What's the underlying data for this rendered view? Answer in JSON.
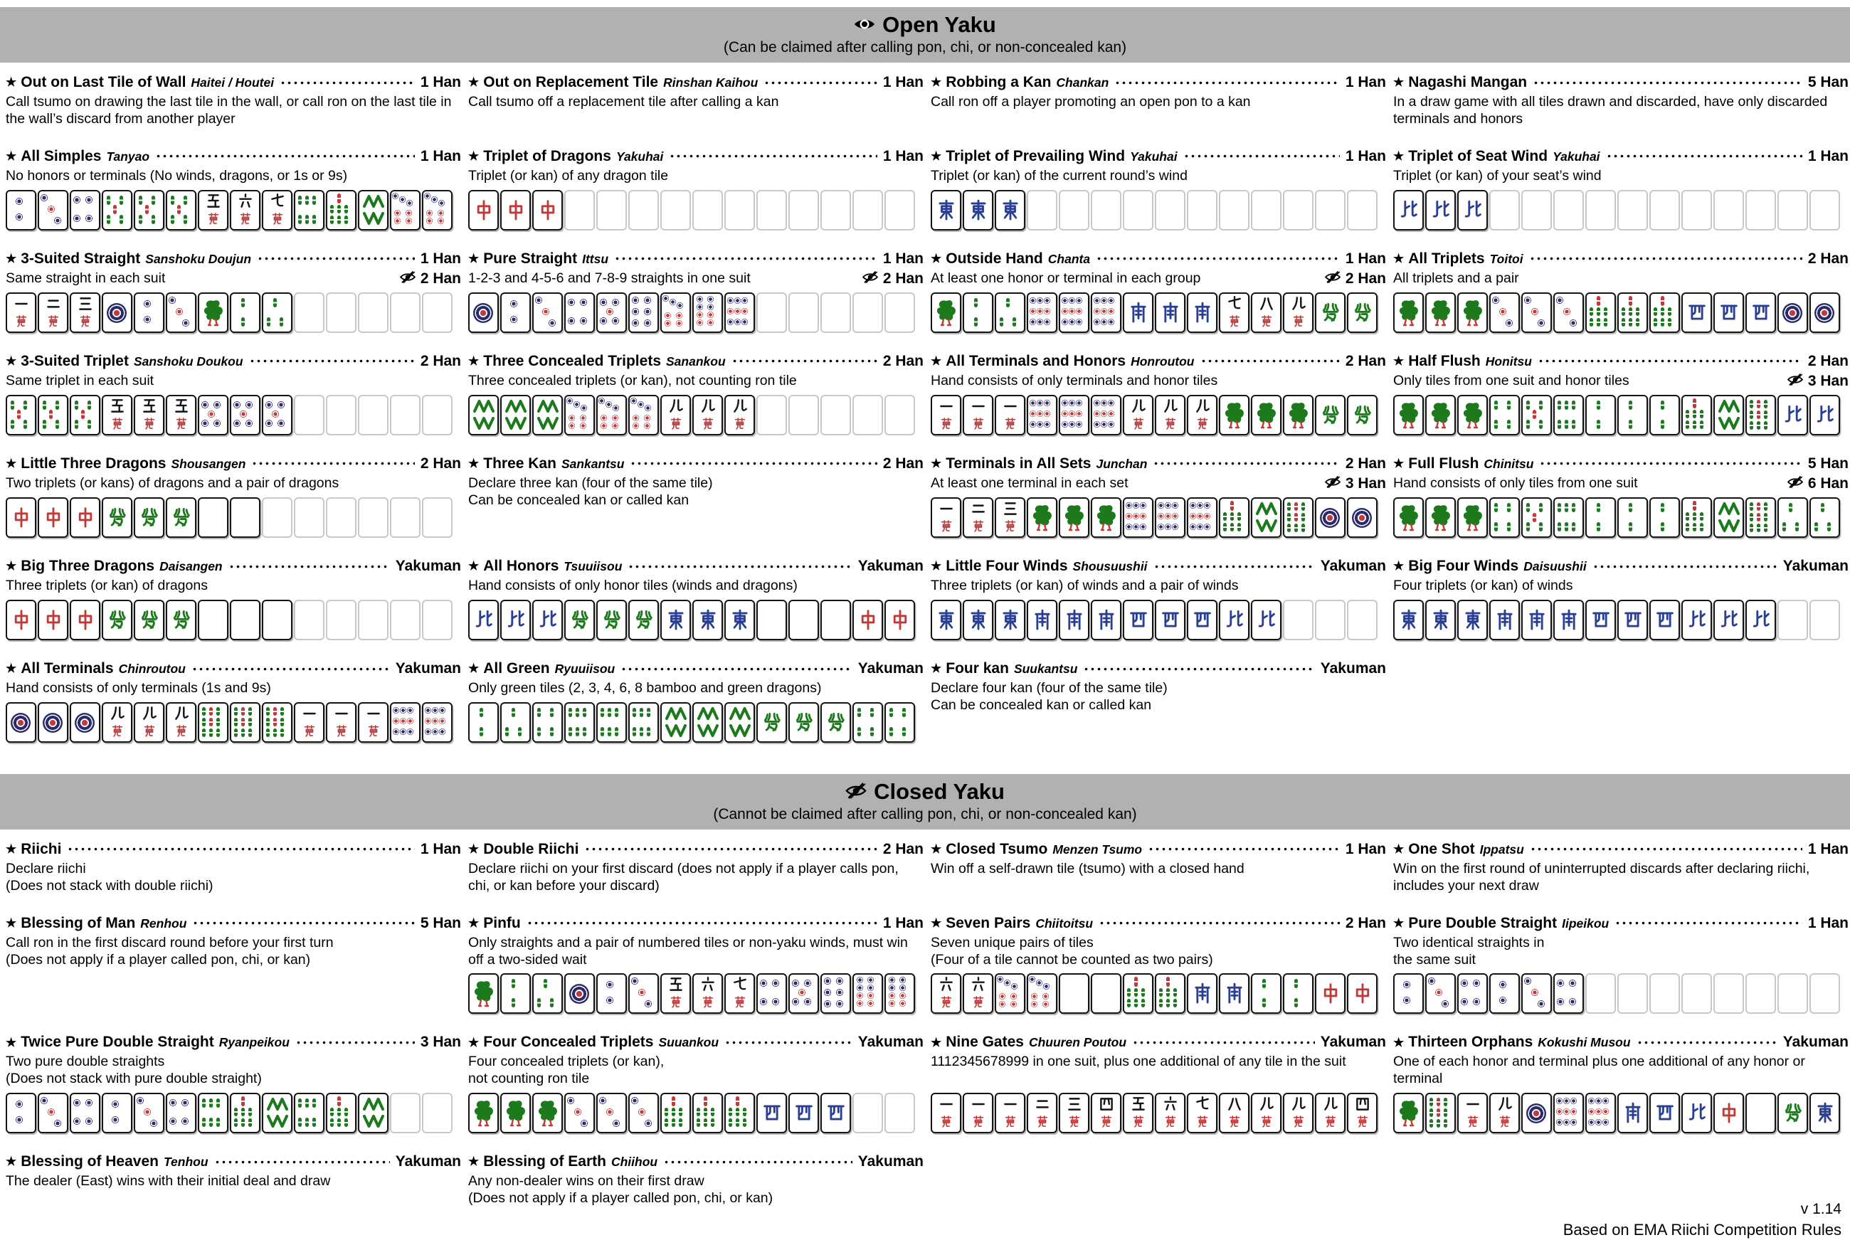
{
  "colors": {
    "header_bg": "#b1b1b1",
    "tile_border": "#151515",
    "empty_border": "#c8c8c8",
    "pin_navy": "#2b2b6b",
    "accent_red": "#c03a3a",
    "bamboo_green": "#1c7a1c",
    "wind_blue": "#2a3f92"
  },
  "footer": {
    "version": "v 1.14",
    "credit": "Based on EMA Riichi Competition Rules"
  },
  "sections": [
    {
      "title": "Open Yaku",
      "icon": "eye-open",
      "subtitle": "(Can be claimed after calling pon, chi, or non-concealed kan)",
      "rows": [
        [
          {
            "name": "Out on Last Tile of Wall",
            "romaji": "Haitei / Houtei",
            "han": "1 Han",
            "desc": [
              "Call tsumo on drawing the last tile in the wall, or call ron on the last tile in the wall’s discard from another player"
            ]
          },
          {
            "name": "Out on Replacement Tile",
            "romaji": "Rinshan Kaihou",
            "han": "1 Han",
            "desc": [
              "Call tsumo off a replacement tile after calling a kan"
            ]
          },
          {
            "name": "Robbing a Kan",
            "romaji": "Chankan",
            "han": "1 Han",
            "desc": [
              "Call ron off a player promoting an open pon to a kan"
            ]
          },
          {
            "name": "Nagashi Mangan",
            "romaji": "",
            "han": "5 Han",
            "desc": [
              "In a draw game with all tiles drawn and discarded, have only discarded terminals and honors"
            ]
          }
        ],
        [
          {
            "name": "All Simples",
            "romaji": "Tanyao",
            "han": "1 Han",
            "desc": [
              "No honors or terminals (No winds, dragons, or 1s or 9s)"
            ],
            "tiles": [
              "2p",
              "3p",
              "4p",
              "5s",
              "5s",
              "5s",
              "5m",
              "6m",
              "7m",
              "6s",
              "7s",
              "8s",
              "7p",
              "7p"
            ]
          },
          {
            "name": "Triplet of Dragons",
            "romaji": "Yakuhai",
            "han": "1 Han",
            "desc": [
              "Triplet (or kan) of any dragon tile"
            ],
            "tiles": [
              "C",
              "C",
              "C",
              "",
              "",
              "",
              "",
              "",
              "",
              "",
              "",
              "",
              "",
              ""
            ]
          },
          {
            "name": "Triplet of Prevailing Wind",
            "romaji": "Yakuhai",
            "han": "1 Han",
            "desc": [
              "Triplet (or kan) of the current round’s wind"
            ],
            "tiles": [
              "E",
              "E",
              "E",
              "",
              "",
              "",
              "",
              "",
              "",
              "",
              "",
              "",
              "",
              ""
            ]
          },
          {
            "name": "Triplet of Seat Wind",
            "romaji": "Yakuhai",
            "han": "1 Han",
            "desc": [
              "Triplet (or kan) of your seat’s wind"
            ],
            "tiles": [
              "N",
              "N",
              "N",
              "",
              "",
              "",
              "",
              "",
              "",
              "",
              "",
              "",
              "",
              ""
            ]
          }
        ],
        [
          {
            "name": "3-Suited Straight",
            "romaji": "Sanshoku Doujun",
            "han": "1 Han",
            "han2": "2 Han",
            "desc": [
              "Same straight in each suit"
            ],
            "tiles": [
              "1m",
              "2m",
              "3m",
              "1p",
              "2p",
              "3p",
              "1s",
              "2s",
              "3s",
              "",
              "",
              "",
              "",
              ""
            ]
          },
          {
            "name": "Pure Straight",
            "romaji": "Ittsu",
            "han": "1 Han",
            "han2": "2 Han",
            "desc": [
              "1-2-3 and 4-5-6 and 7-8-9 straights in one suit"
            ],
            "tiles": [
              "1p",
              "2p",
              "3p",
              "4p",
              "5p",
              "6p",
              "7p",
              "8p",
              "9p",
              "",
              "",
              "",
              "",
              ""
            ]
          },
          {
            "name": "Outside Hand",
            "romaji": "Chanta",
            "han": "1 Han",
            "han2": "2 Han",
            "desc": [
              "At least one honor or terminal in each group"
            ],
            "tiles": [
              "1s",
              "2s",
              "3s",
              "9p",
              "9p",
              "9p",
              "S",
              "S",
              "S",
              "7m",
              "8m",
              "9m",
              "F",
              "F"
            ]
          },
          {
            "name": "All Triplets",
            "romaji": "Toitoi",
            "han": "2 Han",
            "desc": [
              "All triplets and a pair"
            ],
            "tiles": [
              "1s",
              "1s",
              "1s",
              "3p",
              "3p",
              "3p",
              "7s",
              "7s",
              "7s",
              "W",
              "W",
              "W",
              "1p",
              "1p"
            ]
          }
        ],
        [
          {
            "name": "3-Suited Triplet",
            "romaji": "Sanshoku Doukou",
            "han": "2 Han",
            "desc": [
              "Same triplet in each suit"
            ],
            "tiles": [
              "5s",
              "5s",
              "5s",
              "5m",
              "5m",
              "5m",
              "5p",
              "5p",
              "5p",
              "",
              "",
              "",
              "",
              ""
            ]
          },
          {
            "name": "Three Concealed Triplets",
            "romaji": "Sanankou",
            "han": "2 Han",
            "desc": [
              "Three concealed triplets (or kan), not counting ron tile"
            ],
            "tiles": [
              "8s",
              "8s",
              "8s",
              "7p",
              "7p",
              "7p",
              "9m",
              "9m",
              "9m",
              "",
              "",
              "",
              "",
              ""
            ]
          },
          {
            "name": "All Terminals and Honors",
            "romaji": "Honroutou",
            "han": "2 Han",
            "desc": [
              "Hand consists of only terminals and honor tiles"
            ],
            "tiles": [
              "1m",
              "1m",
              "1m",
              "9p",
              "9p",
              "9p",
              "9m",
              "9m",
              "9m",
              "1s",
              "1s",
              "1s",
              "F",
              "F"
            ]
          },
          {
            "name": "Half Flush",
            "romaji": "Honitsu",
            "han": "2 Han",
            "han2": "3 Han",
            "desc": [
              "Only tiles from one suit and honor tiles"
            ],
            "tiles": [
              "1s",
              "1s",
              "1s",
              "4s",
              "5s",
              "6s",
              "2s",
              "2s",
              "2s",
              "7s",
              "8s",
              "9s",
              "N",
              "N"
            ]
          }
        ],
        [
          {
            "name": "Little Three Dragons",
            "romaji": "Shousangen",
            "han": "2 Han",
            "desc": [
              "Two triplets (or kans) of dragons and a pair of dragons"
            ],
            "tiles": [
              "C",
              "C",
              "C",
              "F",
              "F",
              "F",
              "H",
              "H",
              "",
              "",
              "",
              "",
              "",
              ""
            ]
          },
          {
            "name": "Three Kan",
            "romaji": "Sankantsu",
            "han": "2 Han",
            "desc": [
              "Declare three kan (four of the same tile)",
              "Can be concealed kan or called kan"
            ]
          },
          {
            "name": "Terminals in All Sets",
            "romaji": "Junchan",
            "han": "2 Han",
            "han2": "3 Han",
            "desc": [
              "At least one terminal in each set"
            ],
            "tiles": [
              "1m",
              "2m",
              "3m",
              "1s",
              "1s",
              "1s",
              "9p",
              "9p",
              "9p",
              "7s",
              "8s",
              "9s",
              "1p",
              "1p"
            ]
          },
          {
            "name": "Full Flush",
            "romaji": "Chinitsu",
            "han": "5 Han",
            "han2": "6 Han",
            "desc": [
              "Hand consists of only tiles from one suit"
            ],
            "tiles": [
              "1s",
              "1s",
              "1s",
              "4s",
              "5s",
              "6s",
              "2s",
              "2s",
              "2s",
              "7s",
              "8s",
              "9s",
              "3s",
              "3s"
            ]
          }
        ],
        [
          {
            "name": "Big Three Dragons",
            "romaji": "Daisangen",
            "han": "Yakuman",
            "desc": [
              "Three triplets (or kan) of dragons"
            ],
            "tiles": [
              "C",
              "C",
              "C",
              "F",
              "F",
              "F",
              "H",
              "H",
              "H",
              "",
              "",
              "",
              "",
              ""
            ]
          },
          {
            "name": "All Honors",
            "romaji": "Tsuuiisou",
            "han": "Yakuman",
            "desc": [
              "Hand consists of only honor tiles (winds and dragons)"
            ],
            "tiles": [
              "N",
              "N",
              "N",
              "F",
              "F",
              "F",
              "E",
              "E",
              "E",
              "H",
              "H",
              "H",
              "C",
              "C"
            ]
          },
          {
            "name": "Little Four Winds",
            "romaji": "Shousuushii",
            "han": "Yakuman",
            "desc": [
              "Three triplets (or kan) of winds and a pair of winds"
            ],
            "tiles": [
              "E",
              "E",
              "E",
              "S",
              "S",
              "S",
              "W",
              "W",
              "W",
              "N",
              "N",
              "",
              "",
              ""
            ]
          },
          {
            "name": "Big Four Winds",
            "romaji": "Daisuushii",
            "han": "Yakuman",
            "desc": [
              "Four triplets (or kan) of winds"
            ],
            "tiles": [
              "E",
              "E",
              "E",
              "S",
              "S",
              "S",
              "W",
              "W",
              "W",
              "N",
              "N",
              "N",
              "",
              ""
            ]
          }
        ],
        [
          {
            "name": "All Terminals",
            "romaji": "Chinroutou",
            "han": "Yakuman",
            "desc": [
              "Hand consists of only terminals (1s and 9s)"
            ],
            "tiles": [
              "1p",
              "1p",
              "1p",
              "9m",
              "9m",
              "9m",
              "9s",
              "9s",
              "9s",
              "1m",
              "1m",
              "1m",
              "9p",
              "9p"
            ]
          },
          {
            "name": "All Green",
            "romaji": "Ryuuiisou",
            "han": "Yakuman",
            "desc": [
              "Only green tiles (2, 3, 4, 6, 8 bamboo and green dragons)"
            ],
            "tiles": [
              "2s",
              "3s",
              "4s",
              "6s",
              "6s",
              "6s",
              "8s",
              "8s",
              "8s",
              "F",
              "F",
              "F",
              "4s",
              "4s"
            ]
          },
          {
            "name": "Four kan",
            "romaji": "Suukantsu",
            "han": "Yakuman",
            "desc": [
              "Declare four kan (four of the same tile)",
              "Can be concealed kan or called kan"
            ]
          },
          null
        ]
      ]
    },
    {
      "title": "Closed Yaku",
      "icon": "eye-slash",
      "subtitle": "(Cannot be claimed after calling pon, chi, or non-concealed kan)",
      "rows": [
        [
          {
            "name": "Riichi",
            "romaji": "",
            "han": "1 Han",
            "desc": [
              "Declare riichi",
              "(Does not stack with double riichi)"
            ]
          },
          {
            "name": "Double Riichi",
            "romaji": "",
            "han": "2 Han",
            "desc": [
              "Declare riichi on your first discard (does not apply if a player calls pon, chi, or kan before your discard)"
            ]
          },
          {
            "name": "Closed Tsumo",
            "romaji": "Menzen Tsumo",
            "han": "1 Han",
            "desc": [
              "Win off a self-drawn tile (tsumo) with a closed hand"
            ]
          },
          {
            "name": "One Shot",
            "romaji": "Ippatsu",
            "han": "1 Han",
            "desc": [
              "Win on the first round of uninterrupted discards after declaring riichi, includes your next draw"
            ]
          }
        ],
        [
          {
            "name": "Blessing of Man",
            "romaji": "Renhou",
            "han": "5 Han",
            "desc": [
              "Call ron in the first discard round before your first turn",
              "(Does not apply if a player called pon, chi, or kan)"
            ]
          },
          {
            "name": "Pinfu",
            "romaji": "",
            "han": "1 Han",
            "desc": [
              "Only straights and a pair of numbered tiles or non-yaku winds, must win off a two-sided wait"
            ],
            "tiles": [
              "1s",
              "2s",
              "3s",
              "1p",
              "2p",
              "3p",
              "5m",
              "6m",
              "7m",
              "4p",
              "5p",
              "6p",
              "8p",
              "8p"
            ]
          },
          {
            "name": "Seven Pairs",
            "romaji": "Chiitoitsu",
            "han": "2 Han",
            "desc": [
              "Seven unique pairs of tiles",
              "(Four of a tile cannot be counted as two pairs)"
            ],
            "tiles": [
              "6m",
              "6m",
              "7p",
              "7p",
              "H",
              "H",
              "7s",
              "7s",
              "S",
              "S",
              "2s",
              "2s",
              "C",
              "C"
            ]
          },
          {
            "name": "Pure Double Straight",
            "romaji": "Iipeikou",
            "han": "1 Han",
            "desc": [
              "Two identical straights in",
              "the same suit"
            ],
            "tiles": [
              "2p",
              "3p",
              "4p",
              "2p",
              "3p",
              "4p",
              "",
              "",
              "",
              "",
              "",
              "",
              "",
              ""
            ]
          }
        ],
        [
          {
            "name": "Twice Pure Double Straight",
            "romaji": "Ryanpeikou",
            "han": "3 Han",
            "desc": [
              "Two pure double straights",
              "(Does not stack with pure double straight)"
            ],
            "tiles": [
              "2p",
              "3p",
              "4p",
              "2p",
              "3p",
              "4p",
              "6s",
              "7s",
              "8s",
              "6s",
              "7s",
              "8s",
              "",
              ""
            ]
          },
          {
            "name": "Four Concealed Triplets",
            "romaji": "Suuankou",
            "han": "Yakuman",
            "desc": [
              "Four concealed triplets (or kan),",
              "not counting ron tile"
            ],
            "tiles": [
              "1s",
              "1s",
              "1s",
              "3p",
              "3p",
              "3p",
              "7s",
              "7s",
              "7s",
              "W",
              "W",
              "W",
              "",
              ""
            ]
          },
          {
            "name": "Nine Gates",
            "romaji": "Chuuren Poutou",
            "han": "Yakuman",
            "desc": [
              "1112345678999 in one suit, plus one additional of any tile in the suit"
            ],
            "tiles": [
              "1m",
              "1m",
              "1m",
              "2m",
              "3m",
              "4m",
              "5m",
              "6m",
              "7m",
              "8m",
              "9m",
              "9m",
              "9m",
              "4m"
            ]
          },
          {
            "name": "Thirteen Orphans",
            "romaji": "Kokushi Musou",
            "han": "Yakuman",
            "desc": [
              "One of each honor and terminal plus one additional of any honor or terminal"
            ],
            "tiles": [
              "1s",
              "9s",
              "1m",
              "9m",
              "1p",
              "9p",
              "9p",
              "S",
              "W",
              "N",
              "C",
              "H",
              "F",
              "E"
            ]
          }
        ],
        [
          {
            "name": "Blessing of Heaven",
            "romaji": "Tenhou",
            "han": "Yakuman",
            "desc": [
              "The dealer (East) wins with their initial deal and draw"
            ]
          },
          {
            "name": "Blessing of Earth",
            "romaji": "Chiihou",
            "han": "Yakuman",
            "desc": [
              "Any non-dealer wins on their first draw",
              "(Does not apply if a player called pon, chi, or kan)"
            ]
          },
          null,
          null
        ]
      ]
    }
  ]
}
